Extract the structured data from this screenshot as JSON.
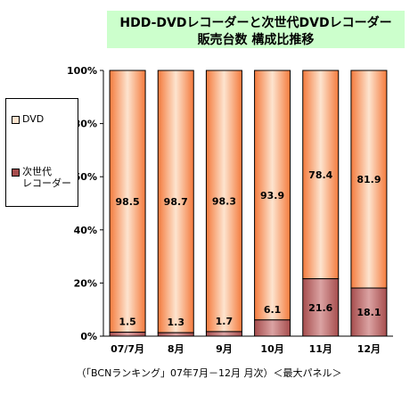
{
  "title": {
    "line1": "HDD-DVDレコーダーと次世代DVDレコーダー",
    "line2": "販売台数 構成比推移"
  },
  "legend": {
    "dvd": "DVD",
    "next_gen": "次世代\nレコーダー"
  },
  "footer": "（「BCNランキング」07年7月－12月 月次）＜最大パネル＞",
  "colors": {
    "dvd": "#f47a3c",
    "dvd_highlight": "#fde4cf",
    "next_gen": "#a64d4d",
    "next_gen_highlight": "#dba3a3"
  },
  "chart_data": {
    "type": "bar",
    "stacked": true,
    "percent": true,
    "categories": [
      "07/7月",
      "8月",
      "9月",
      "10月",
      "11月",
      "12月"
    ],
    "series": [
      {
        "name": "次世代レコーダー",
        "values": [
          1.5,
          1.3,
          1.7,
          6.1,
          21.6,
          18.1
        ]
      },
      {
        "name": "DVD",
        "values": [
          98.5,
          98.7,
          98.3,
          93.9,
          78.4,
          81.9
        ]
      }
    ],
    "yticks": [
      "0%",
      "20%",
      "40%",
      "60%",
      "80%",
      "100%"
    ],
    "ylim": [
      0,
      100
    ],
    "grid": false,
    "legend_position": "left"
  }
}
